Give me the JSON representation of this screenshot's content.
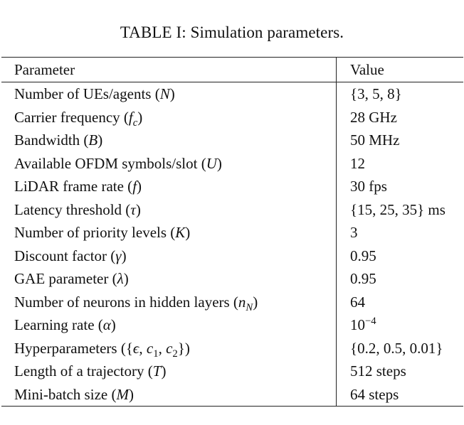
{
  "caption": "TABLE I: Simulation parameters.",
  "table": {
    "headers": {
      "param": "Parameter",
      "value": "Value"
    },
    "rows": [
      {
        "param": "Number of UEs/agents (N)",
        "value": "{3, 5, 8}"
      },
      {
        "param": "Carrier frequency (fc)",
        "value": "28 GHz"
      },
      {
        "param": "Bandwidth (B)",
        "value": "50 MHz"
      },
      {
        "param": "Available OFDM symbols/slot (U)",
        "value": "12"
      },
      {
        "param": "LiDAR frame rate (f)",
        "value": "30 fps"
      },
      {
        "param": "Latency threshold (τ)",
        "value": "{15, 25, 35} ms"
      },
      {
        "param": "Number of priority levels (K)",
        "value": "3"
      },
      {
        "param": "Discount factor (γ)",
        "value": "0.95"
      },
      {
        "param": "GAE parameter (λ)",
        "value": "0.95"
      },
      {
        "param": "Number of neurons in hidden layers (nN)",
        "value": "64"
      },
      {
        "param": "Learning rate (α)",
        "value": "10−4"
      },
      {
        "param": "Hyperparameters ({ϵ, c1, c2})",
        "value": "{0.2, 0.5, 0.01}"
      },
      {
        "param": "Length of a trajectory (T)",
        "value": "512 steps"
      },
      {
        "param": "Mini-batch size (M)",
        "value": "64 steps"
      }
    ]
  }
}
